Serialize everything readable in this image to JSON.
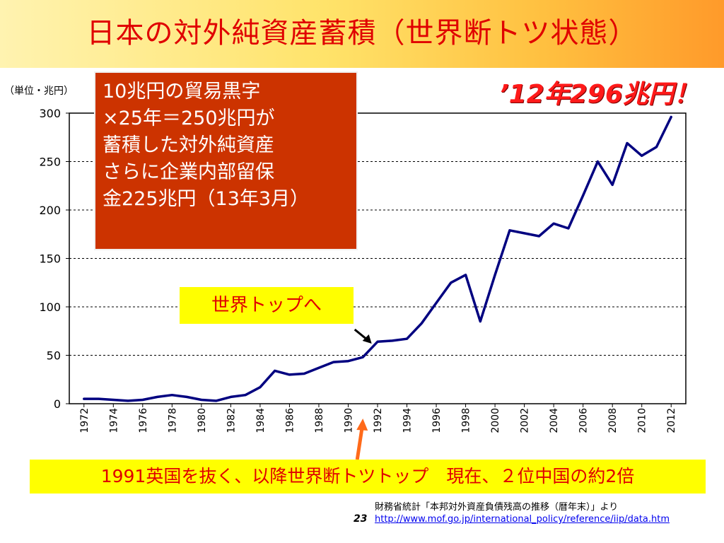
{
  "slide": {
    "title": "日本の対外純資産蓄積（世界断トツ状態）",
    "unit_label": "（単位・兆円）",
    "headline": "’12年296兆円！",
    "note_lines": [
      "10兆円の貿易黒字",
      "×25年＝250兆円が",
      "蓄積した対外純資産",
      "さらに企業内部留保",
      "金225兆円（13年3月）"
    ],
    "callout": "世界トップへ",
    "bottom_note": "1991英国を抜く、以降世界断トツトップ　現在、２位中国の約2倍",
    "slide_number": "23",
    "source_text": "財務省統計「本邦対外資産負債残高の推移（暦年末）」より",
    "source_url": "http://www.mof.go.jp/international_policy/reference/iip/data.htm"
  },
  "colors": {
    "title": "#e00000",
    "line": "#000080",
    "note_box": "#cc3300",
    "highlight": "#ffff00",
    "arrow": "#ff6a1a"
  },
  "chart_data": {
    "type": "line",
    "x": [
      1972,
      1973,
      1974,
      1975,
      1976,
      1977,
      1978,
      1979,
      1980,
      1981,
      1982,
      1983,
      1984,
      1985,
      1986,
      1987,
      1988,
      1989,
      1990,
      1991,
      1992,
      1993,
      1994,
      1995,
      1996,
      1997,
      1998,
      1999,
      2000,
      2001,
      2002,
      2003,
      2004,
      2005,
      2006,
      2007,
      2008,
      2009,
      2010,
      2011,
      2012
    ],
    "values": [
      5,
      5,
      4,
      3,
      4,
      7,
      9,
      7,
      4,
      3,
      7,
      9,
      17,
      34,
      30,
      31,
      37,
      43,
      44,
      48,
      64,
      65,
      67,
      83,
      104,
      125,
      133,
      85,
      133,
      179,
      176,
      173,
      186,
      181,
      215,
      250,
      226,
      269,
      256,
      265,
      296
    ],
    "x_tick_labels": [
      "1972",
      "1974",
      "1976",
      "1978",
      "1980",
      "1982",
      "1984",
      "1986",
      "1988",
      "1990",
      "1992",
      "1994",
      "1996",
      "1998",
      "2000",
      "2002",
      "2004",
      "2006",
      "2008",
      "2010",
      "2012"
    ],
    "y_tick_labels": [
      "0",
      "50",
      "100",
      "150",
      "200",
      "250",
      "300"
    ],
    "ylim": [
      0,
      300
    ],
    "xlim": [
      1971,
      2013
    ],
    "grid": true
  }
}
